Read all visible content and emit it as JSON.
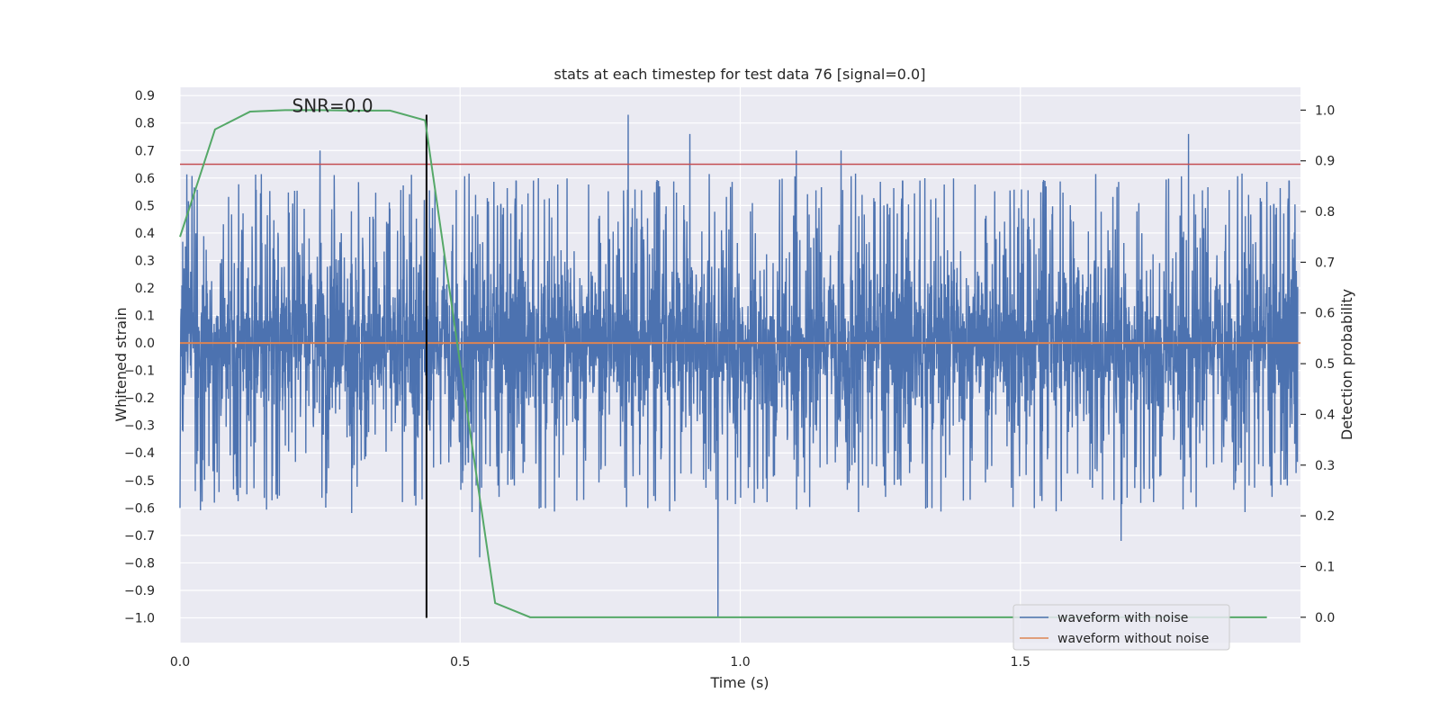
{
  "chart_data": {
    "type": "line",
    "title": "stats at each timestep for test data 76 [signal=0.0]",
    "xlabel": "Time (s)",
    "ylabel": "Whitened strain",
    "ylabel_right": "Detection probability",
    "xlim": [
      0.0,
      2.0
    ],
    "ylim": [
      -1.09,
      0.93
    ],
    "ylim_right": [
      -0.05,
      1.045
    ],
    "x_ticks": [
      0.0,
      0.5,
      1.0,
      1.5
    ],
    "x_tick_labels": [
      "0.0",
      "0.5",
      "1.0",
      "1.5"
    ],
    "y_ticks": [
      0.9,
      0.8,
      0.7,
      0.6,
      0.5,
      0.4,
      0.3,
      0.2,
      0.1,
      0.0,
      -0.1,
      -0.2,
      -0.3,
      -0.4,
      -0.5,
      -0.6,
      -0.7,
      -0.8,
      -0.9,
      -1.0
    ],
    "y_tick_labels": [
      "0.9",
      "0.8",
      "0.7",
      "0.6",
      "0.5",
      "0.4",
      "0.3",
      "0.2",
      "0.1",
      "0.0",
      "−0.1",
      "−0.2",
      "−0.3",
      "−0.4",
      "−0.5",
      "−0.6",
      "−0.7",
      "−0.8",
      "−0.9",
      "−1.0"
    ],
    "y2_ticks": [
      1.0,
      0.9,
      0.8,
      0.7,
      0.6,
      0.5,
      0.4,
      0.3,
      0.2,
      0.1,
      0.0
    ],
    "y2_tick_labels": [
      "1.0",
      "0.9",
      "0.8",
      "0.7",
      "0.6",
      "0.5",
      "0.4",
      "0.3",
      "0.2",
      "0.1",
      "0.0"
    ],
    "grid": true,
    "annotation": {
      "text": "SNR=0.0",
      "x": 0.2,
      "y": 0.83
    },
    "vline": {
      "x": 0.44,
      "y_from": -1.0,
      "y_to": 0.83,
      "color": "#000000"
    },
    "hline_threshold": {
      "y": 0.65,
      "color": "#c44e52"
    },
    "noise": {
      "n_points": 4096,
      "x_end": 1.995,
      "seed": 76,
      "amplitude": 0.24,
      "spike_min": 0.2,
      "spike_max": 0.62
    },
    "series": [
      {
        "name": "waveform with noise",
        "color": "#4c72b0",
        "axis": "left",
        "peaks": [
          [
            0.25,
            0.7
          ],
          [
            0.8,
            0.83
          ],
          [
            0.96,
            -1.0
          ],
          [
            0.91,
            0.76
          ],
          [
            1.18,
            0.7
          ],
          [
            1.68,
            -0.72
          ],
          [
            1.1,
            0.7
          ],
          [
            1.8,
            0.76
          ],
          [
            0.535,
            -0.78
          ]
        ]
      },
      {
        "name": "waveform without noise",
        "color": "#dd8452",
        "axis": "left",
        "x": [
          0.0,
          2.0
        ],
        "y": [
          0.0,
          0.0
        ]
      },
      {
        "name": "detection probability",
        "color": "#55a868",
        "axis": "right",
        "x": [
          0.0,
          0.0625,
          0.125,
          0.1875,
          0.25,
          0.3125,
          0.375,
          0.4375,
          0.5,
          0.5625,
          0.625,
          0.6875,
          0.75,
          1.0,
          1.5,
          1.94
        ],
        "y": [
          0.75,
          0.962,
          0.997,
          1.0,
          1.0,
          0.999,
          0.999,
          0.98,
          0.5,
          0.028,
          0.0,
          0.0,
          0.0,
          0.0,
          0.0,
          0.0
        ]
      }
    ],
    "legend": {
      "position": "lower right",
      "entries": [
        "waveform with noise",
        "waveform without noise"
      ]
    }
  }
}
